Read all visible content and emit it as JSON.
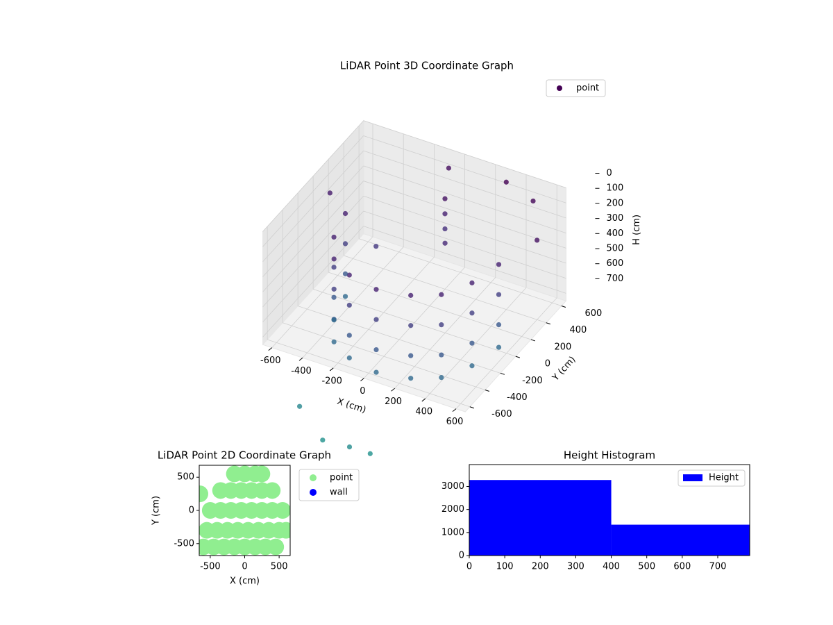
{
  "chart_data": [
    {
      "type": "scatter3d",
      "title": "LiDAR Point 3D Coordinate Graph",
      "xlabel": "X (cm)",
      "ylabel": "Y (cm)",
      "zlabel": "H (cm)",
      "xlim": [
        -660,
        660
      ],
      "ylim": [
        -660,
        660
      ],
      "zlim": [
        0,
        750
      ],
      "z_inverted": true,
      "xticks": [
        -600,
        -400,
        -200,
        0,
        200,
        400,
        600
      ],
      "yticks": [
        -600,
        -400,
        -200,
        0,
        200,
        400,
        600
      ],
      "zticks": [
        0,
        100,
        200,
        300,
        400,
        500,
        600,
        700
      ],
      "grid": true,
      "legend": "upper right",
      "series": [
        {
          "name": "point",
          "colormap": "viridis",
          "x": [
            0,
            0,
            0,
            300,
            500,
            -100,
            650,
            -650,
            100,
            -300,
            -400,
            -200,
            0,
            100,
            -500,
            -450,
            -350,
            -200,
            0,
            200,
            350,
            450,
            500,
            -500,
            -450,
            -350,
            -200,
            0,
            200,
            350,
            450,
            500,
            -500,
            -450,
            -350,
            -200,
            0,
            200,
            350,
            450,
            500,
            -500,
            -450,
            -350,
            -200,
            0,
            200,
            350,
            450,
            500
          ],
          "y": [
            400,
            400,
            400,
            600,
            550,
            650,
            300,
            200,
            200,
            100,
            -700,
            -800,
            -850,
            -780,
            100,
            -150,
            -350,
            -450,
            -500,
            -450,
            -350,
            -150,
            100,
            100,
            -150,
            -350,
            -450,
            -500,
            -450,
            -350,
            -150,
            100,
            100,
            -150,
            -350,
            -450,
            -500,
            -450,
            -350,
            -150,
            100,
            100,
            -150,
            -350,
            -450,
            -500,
            -450,
            -350,
            -150,
            100
          ],
          "z": [
            150,
            250,
            350,
            50,
            80,
            120,
            150,
            220,
            300,
            400,
            1050,
            1150,
            1100,
            1150,
            250,
            250,
            250,
            250,
            250,
            250,
            250,
            250,
            250,
            450,
            450,
            450,
            450,
            450,
            450,
            450,
            450,
            450,
            650,
            650,
            650,
            650,
            650,
            650,
            650,
            650,
            650,
            800,
            800,
            800,
            800,
            800,
            800,
            800,
            800,
            800
          ]
        }
      ]
    },
    {
      "type": "scatter",
      "title": "LiDAR Point 2D Coordinate Graph",
      "xlabel": "X (cm)",
      "ylabel": "Y (cm)",
      "xlim": [
        -660,
        660
      ],
      "ylim": [
        -680,
        680
      ],
      "xticks": [
        -500,
        0,
        500
      ],
      "yticks": [
        -500,
        0,
        500
      ],
      "legend": "outside right",
      "series": [
        {
          "name": "point",
          "color": "#90ee90",
          "x": [
            -600,
            -450,
            -300,
            -150,
            0,
            150,
            300,
            450,
            -550,
            -400,
            -250,
            -100,
            50,
            200,
            350,
            500,
            600,
            -500,
            -350,
            -200,
            -50,
            100,
            250,
            400,
            550,
            -350,
            -200,
            -50,
            100,
            250,
            400,
            -150,
            0,
            150,
            250,
            -650
          ],
          "y": [
            -550,
            -550,
            -550,
            -550,
            -550,
            -550,
            -550,
            -550,
            -300,
            -300,
            -300,
            -300,
            -300,
            -300,
            -300,
            -300,
            -300,
            0,
            0,
            0,
            0,
            0,
            0,
            0,
            0,
            300,
            300,
            300,
            300,
            300,
            300,
            550,
            550,
            550,
            550,
            250
          ]
        },
        {
          "name": "wall",
          "color": "#0000ff",
          "x": [],
          "y": []
        }
      ]
    },
    {
      "type": "histogram",
      "title": "Height Histogram",
      "name": "Height",
      "color": "#0000ff",
      "bins": [
        0,
        400,
        790
      ],
      "values": [
        3280,
        1340
      ],
      "xlim": [
        0,
        790
      ],
      "ylim": [
        0,
        3950
      ],
      "xticks": [
        0,
        100,
        200,
        300,
        400,
        500,
        600,
        700
      ],
      "yticks": [
        0,
        1000,
        2000,
        3000
      ],
      "legend": "upper right"
    }
  ]
}
